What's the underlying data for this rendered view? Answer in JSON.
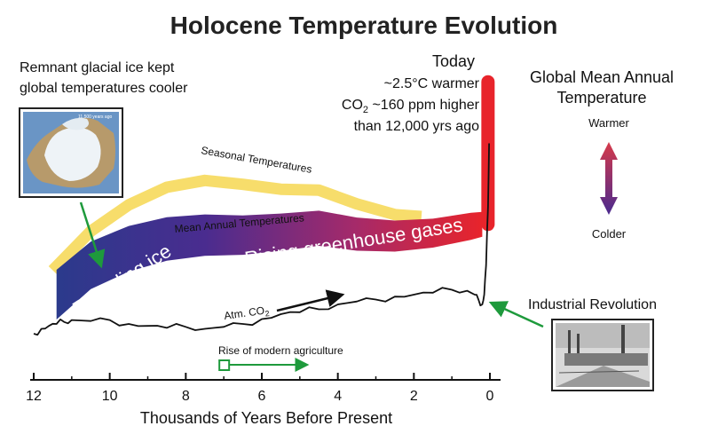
{
  "chart_data": {
    "type": "line",
    "title": "Holocene Temperature Evolution",
    "xlabel": "Thousands of Years Before Present",
    "x_ticks": [
      12,
      10,
      8,
      6,
      4,
      2,
      0
    ],
    "xlim": [
      12,
      0
    ],
    "series": [
      {
        "name": "Seasonal Temperatures",
        "color": "#f7dd6b",
        "x": [
          11.5,
          10.5,
          9.5,
          8.5,
          7.5,
          6.5,
          5.5,
          4.5,
          3.5,
          2.5,
          1.8
        ],
        "values": [
          0.05,
          0.45,
          0.72,
          0.9,
          0.97,
          0.93,
          0.88,
          0.87,
          0.73,
          0.62,
          0.6
        ]
      },
      {
        "name": "Mean Annual Temperatures",
        "color_start": "#2b3a8c",
        "color_end": "#e8242b",
        "x": [
          11.4,
          10.5,
          9.5,
          8.5,
          7.5,
          6.5,
          5.5,
          4.5,
          3.5,
          2.5,
          1.5,
          0.5,
          0.2
        ],
        "values": [
          -0.2,
          0.1,
          0.27,
          0.37,
          0.41,
          0.41,
          0.44,
          0.48,
          0.42,
          0.4,
          0.43,
          0.5,
          0.52
        ]
      },
      {
        "name": "Atm. CO2",
        "color": "#111111",
        "x": [
          12,
          11.8,
          11.6,
          11.4,
          11.2,
          11,
          10.5,
          10,
          9.5,
          9,
          8.5,
          8,
          7.5,
          7,
          6.5,
          6,
          5.5,
          5,
          4.5,
          4,
          3.5,
          3,
          2.5,
          2,
          1.5,
          1,
          0.6,
          0.4,
          0.3,
          0.2,
          0.15,
          0.1,
          0.05,
          0.02
        ],
        "values": [
          -0.6,
          -0.55,
          -0.52,
          -0.5,
          -0.48,
          -0.46,
          -0.47,
          -0.46,
          -0.5,
          -0.52,
          -0.54,
          -0.53,
          -0.55,
          -0.53,
          -0.5,
          -0.45,
          -0.4,
          -0.38,
          -0.35,
          -0.3,
          -0.27,
          -0.25,
          -0.22,
          -0.2,
          -0.18,
          -0.15,
          -0.16,
          -0.2,
          -0.25,
          -0.3,
          -0.2,
          0.1,
          0.7,
          1.35
        ]
      },
      {
        "name": "Today spike",
        "color": "#e8242b",
        "x": [
          0.05,
          0.05
        ],
        "values": [
          0.52,
          1.98
        ]
      }
    ],
    "annotations": {
      "today_title": "Today",
      "today_line1": "~2.5°C warmer",
      "today_co2_prefix": "CO",
      "today_co2_sub": "2",
      "today_co2_suffix": " ~160 ppm higher",
      "today_line3": "than 12,000 yrs ago",
      "glacial_line1": "Remnant glacial ice kept",
      "glacial_line2": "global temperatures cooler",
      "map_caption": "11,500 years ago",
      "receding": "Receding ice",
      "rising": "Rising greenhouse gases",
      "seasonal_label": "Seasonal Temperatures",
      "mean_label": "Mean Annual Temperatures",
      "co2_label_prefix": "Atm. CO",
      "co2_label_sub": "2",
      "agriculture": "Rise of modern agriculture",
      "industrial": "Industrial Revolution",
      "legend_title1": "Global Mean Annual",
      "legend_title2": "Temperature",
      "warmer": "Warmer",
      "colder": "Colder"
    },
    "agriculture_start_kyr": 7,
    "agriculture_end_kyr": 4.8
  }
}
